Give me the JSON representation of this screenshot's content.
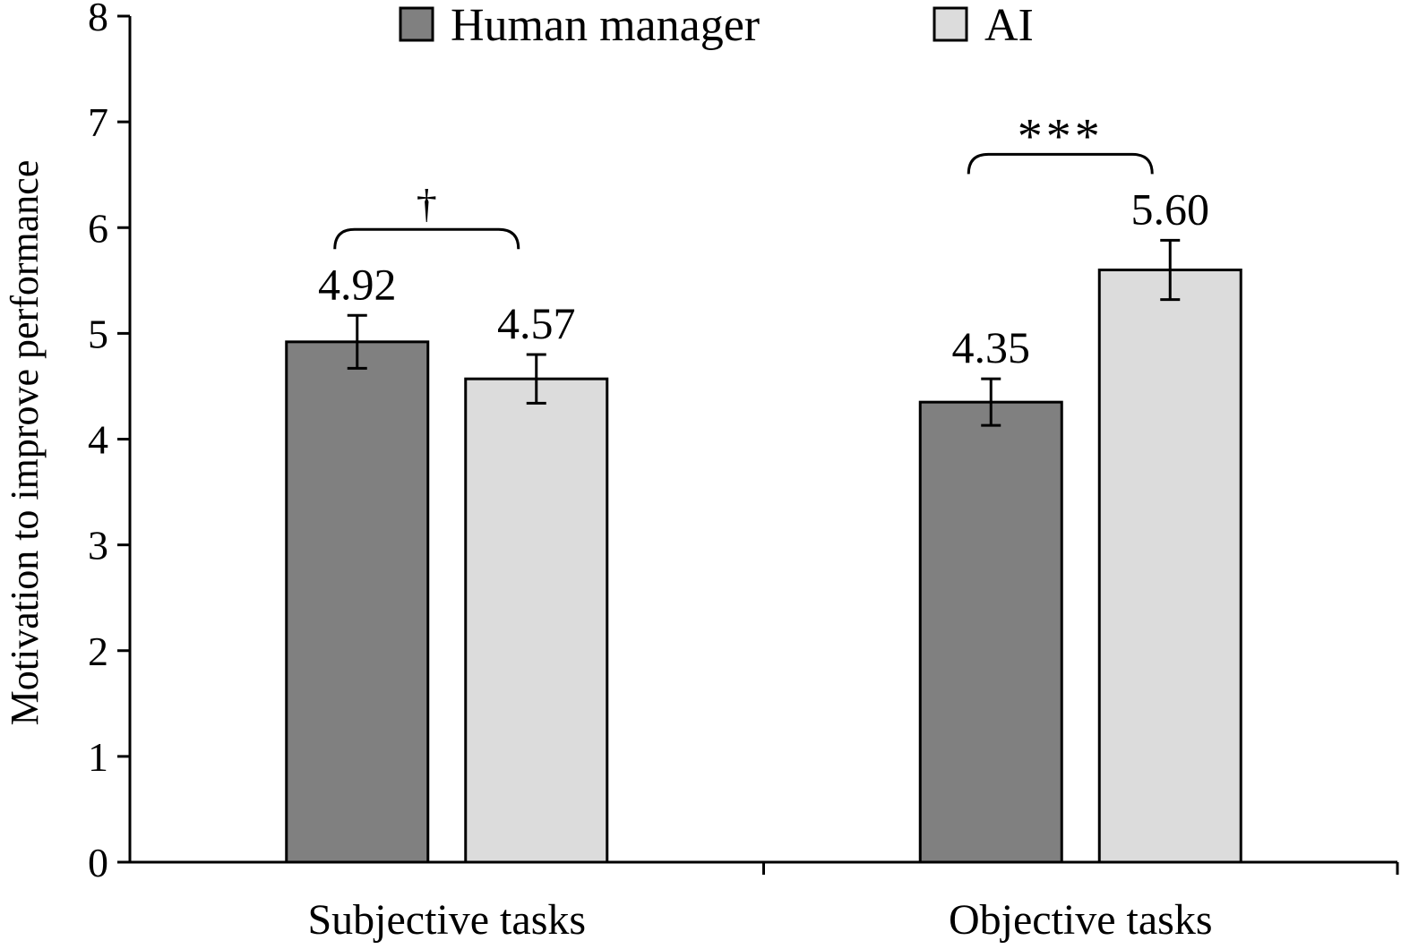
{
  "chart_data": {
    "type": "bar",
    "categories": [
      "Subjective tasks",
      "Objective tasks"
    ],
    "series": [
      {
        "name": "Human manager",
        "values": [
          4.92,
          4.35
        ],
        "labels": [
          "4.92",
          "4.35"
        ],
        "error": [
          0.25,
          0.22
        ],
        "color": "#808080"
      },
      {
        "name": "AI",
        "values": [
          4.57,
          5.6
        ],
        "labels": [
          "4.57",
          "5.60"
        ],
        "error": [
          0.23,
          0.28
        ],
        "color": "#dcdcdc"
      }
    ],
    "ylabel": "Motivation to improve performance",
    "xlabel": "",
    "title": "",
    "ylim": [
      0,
      8
    ],
    "yticks": [
      0,
      1,
      2,
      3,
      4,
      5,
      6,
      7,
      8
    ],
    "grid": false,
    "legend_position": "top-center",
    "significance": [
      {
        "category": "Subjective tasks",
        "label": "†"
      },
      {
        "category": "Objective tasks",
        "label": "***"
      }
    ]
  }
}
